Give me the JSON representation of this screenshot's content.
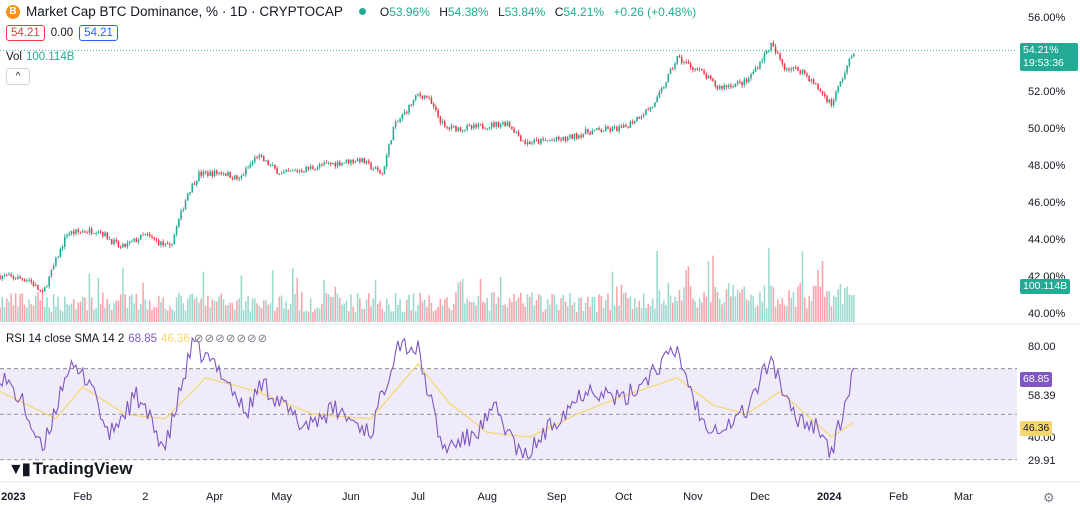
{
  "header": {
    "coin_icon": "B",
    "title": "Market Cap BTC Dominance, % · 1D · CRYPTOCAP",
    "o_label": "O",
    "o": "53.96%",
    "h_label": "H",
    "h": "54.38%",
    "l_label": "L",
    "l": "53.84%",
    "c_label": "C",
    "c": "54.21%",
    "change": "+0.26 (+0.48%)"
  },
  "sell": "54.21",
  "spread": "0.00",
  "buy": "54.21",
  "volume": {
    "label": "Vol",
    "value": "100.114B"
  },
  "collapse_icon": "^",
  "rsi": {
    "name": "RSI 14 close SMA 14 2",
    "value": "68.85",
    "sma": "46.36",
    "icons": "⊘⊘⊘⊘⊘⊘⊘"
  },
  "price_tag": {
    "value": "54.21%",
    "countdown": "19:53:36"
  },
  "vol_tag": "100.114B",
  "rsi_tags": {
    "rsi": "68.85",
    "sma": "46.36"
  },
  "brand": "TradingView",
  "colors": {
    "up": "#22ab94",
    "down": "#f23645",
    "rsi": "#7e57c2",
    "sma": "#f5d76e",
    "band": "#7e57c2"
  },
  "chart_data": {
    "type": "candlestick",
    "title": "Market Cap BTC Dominance, %",
    "y_ticks": [
      "56.00%",
      "54.00%",
      "52.00%",
      "50.00%",
      "48.00%",
      "46.00%",
      "44.00%",
      "42.00%",
      "40.00%"
    ],
    "y_range": [
      39.5,
      56.5
    ],
    "x_ticks": [
      "2023",
      "Feb",
      "2",
      "Apr",
      "May",
      "Jun",
      "Jul",
      "Aug",
      "Sep",
      "Oct",
      "Nov",
      "Dec",
      "2024",
      "Feb",
      "Mar"
    ],
    "close_path_keypoints": [
      {
        "date": "2022-12-26",
        "value": 42.0
      },
      {
        "date": "2023-01-08",
        "value": 41.8
      },
      {
        "date": "2023-01-14",
        "value": 41.0
      },
      {
        "date": "2023-01-25",
        "value": 44.3
      },
      {
        "date": "2023-02-08",
        "value": 44.5
      },
      {
        "date": "2023-02-18",
        "value": 43.5
      },
      {
        "date": "2023-03-01",
        "value": 44.2
      },
      {
        "date": "2023-03-12",
        "value": 43.5
      },
      {
        "date": "2023-03-20",
        "value": 46.5
      },
      {
        "date": "2023-03-25",
        "value": 47.5
      },
      {
        "date": "2023-04-05",
        "value": 47.6
      },
      {
        "date": "2023-04-12",
        "value": 47.2
      },
      {
        "date": "2023-04-20",
        "value": 48.5
      },
      {
        "date": "2023-05-01",
        "value": 47.5
      },
      {
        "date": "2023-05-20",
        "value": 48.0
      },
      {
        "date": "2023-06-05",
        "value": 48.3
      },
      {
        "date": "2023-06-15",
        "value": 47.5
      },
      {
        "date": "2023-06-20",
        "value": 50.0
      },
      {
        "date": "2023-07-01",
        "value": 51.8
      },
      {
        "date": "2023-07-05",
        "value": 51.7
      },
      {
        "date": "2023-07-13",
        "value": 50.0
      },
      {
        "date": "2023-07-25",
        "value": 50.0
      },
      {
        "date": "2023-08-10",
        "value": 50.3
      },
      {
        "date": "2023-08-18",
        "value": 49.2
      },
      {
        "date": "2023-09-05",
        "value": 49.4
      },
      {
        "date": "2023-09-15",
        "value": 49.8
      },
      {
        "date": "2023-10-01",
        "value": 50.0
      },
      {
        "date": "2023-10-15",
        "value": 51.3
      },
      {
        "date": "2023-10-25",
        "value": 53.8
      },
      {
        "date": "2023-11-05",
        "value": 53.0
      },
      {
        "date": "2023-11-12",
        "value": 52.2
      },
      {
        "date": "2023-11-25",
        "value": 52.5
      },
      {
        "date": "2023-12-06",
        "value": 54.5
      },
      {
        "date": "2023-12-12",
        "value": 53.3
      },
      {
        "date": "2023-12-20",
        "value": 53.1
      },
      {
        "date": "2023-12-28",
        "value": 52.0
      },
      {
        "date": "2024-01-02",
        "value": 51.3
      },
      {
        "date": "2024-01-12",
        "value": 54.2
      }
    ],
    "rsi_y_ticks": [
      "80.00",
      "58.39",
      "40.00",
      "29.91"
    ],
    "rsi_range": [
      22,
      87
    ],
    "rsi_bands": {
      "upper": 70,
      "middle": 50,
      "lower": 30
    },
    "rsi_path_keypoints": [
      {
        "date": "2022-12-26",
        "value": 68
      },
      {
        "date": "2023-01-05",
        "value": 55
      },
      {
        "date": "2023-01-14",
        "value": 33
      },
      {
        "date": "2023-01-25",
        "value": 70
      },
      {
        "date": "2023-02-05",
        "value": 65
      },
      {
        "date": "2023-02-12",
        "value": 40
      },
      {
        "date": "2023-02-25",
        "value": 58
      },
      {
        "date": "2023-03-10",
        "value": 35
      },
      {
        "date": "2023-03-22",
        "value": 80
      },
      {
        "date": "2023-04-05",
        "value": 68
      },
      {
        "date": "2023-04-15",
        "value": 50
      },
      {
        "date": "2023-04-22",
        "value": 64
      },
      {
        "date": "2023-05-10",
        "value": 45
      },
      {
        "date": "2023-05-25",
        "value": 52
      },
      {
        "date": "2023-06-10",
        "value": 42
      },
      {
        "date": "2023-06-22",
        "value": 82
      },
      {
        "date": "2023-07-01",
        "value": 78
      },
      {
        "date": "2023-07-12",
        "value": 35
      },
      {
        "date": "2023-07-25",
        "value": 40
      },
      {
        "date": "2023-08-05",
        "value": 52
      },
      {
        "date": "2023-08-17",
        "value": 30
      },
      {
        "date": "2023-09-01",
        "value": 48
      },
      {
        "date": "2023-09-15",
        "value": 62
      },
      {
        "date": "2023-10-01",
        "value": 56
      },
      {
        "date": "2023-10-15",
        "value": 70
      },
      {
        "date": "2023-10-25",
        "value": 78
      },
      {
        "date": "2023-11-05",
        "value": 47
      },
      {
        "date": "2023-11-15",
        "value": 44
      },
      {
        "date": "2023-11-25",
        "value": 52
      },
      {
        "date": "2023-12-06",
        "value": 75
      },
      {
        "date": "2023-12-15",
        "value": 50
      },
      {
        "date": "2023-12-28",
        "value": 44
      },
      {
        "date": "2024-01-02",
        "value": 32
      },
      {
        "date": "2024-01-12",
        "value": 68.85
      }
    ],
    "rsi_sma_path_keypoints": [
      {
        "date": "2022-12-26",
        "value": 60
      },
      {
        "date": "2023-01-20",
        "value": 48
      },
      {
        "date": "2023-02-01",
        "value": 62
      },
      {
        "date": "2023-02-20",
        "value": 50
      },
      {
        "date": "2023-03-10",
        "value": 48
      },
      {
        "date": "2023-03-28",
        "value": 66
      },
      {
        "date": "2023-04-20",
        "value": 60
      },
      {
        "date": "2023-05-15",
        "value": 50
      },
      {
        "date": "2023-06-10",
        "value": 48
      },
      {
        "date": "2023-07-01",
        "value": 72
      },
      {
        "date": "2023-07-15",
        "value": 55
      },
      {
        "date": "2023-08-01",
        "value": 42
      },
      {
        "date": "2023-08-20",
        "value": 40
      },
      {
        "date": "2023-09-10",
        "value": 50
      },
      {
        "date": "2023-10-01",
        "value": 58
      },
      {
        "date": "2023-10-25",
        "value": 66
      },
      {
        "date": "2023-11-10",
        "value": 54
      },
      {
        "date": "2023-11-25",
        "value": 50
      },
      {
        "date": "2023-12-10",
        "value": 60
      },
      {
        "date": "2024-01-02",
        "value": 40
      },
      {
        "date": "2024-01-12",
        "value": 46.36
      }
    ]
  }
}
